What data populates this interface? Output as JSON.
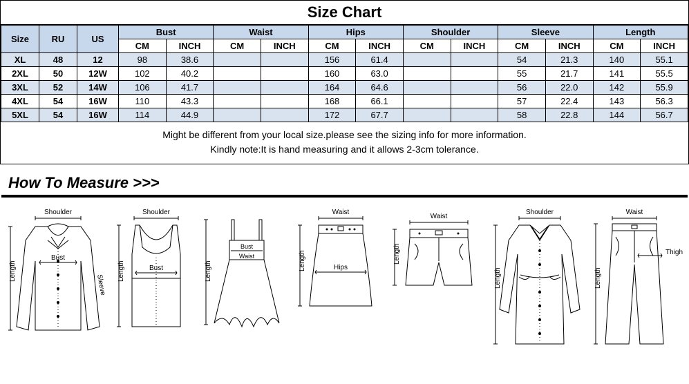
{
  "title": "Size Chart",
  "columns": {
    "size": "Size",
    "ru": "RU",
    "us": "US",
    "bust": "Bust",
    "waist": "Waist",
    "hips": "Hips",
    "shoulder": "Shoulder",
    "sleeve": "Sleeve",
    "length": "Length",
    "cm": "CM",
    "inch": "INCH"
  },
  "header_bg": "#c7d8ed",
  "rows": [
    {
      "size": "XL",
      "ru": "48",
      "us": "12",
      "bust_cm": "98",
      "bust_in": "38.6",
      "waist_cm": "",
      "waist_in": "",
      "hips_cm": "156",
      "hips_in": "61.4",
      "shoulder_cm": "",
      "shoulder_in": "",
      "sleeve_cm": "54",
      "sleeve_in": "21.3",
      "length_cm": "140",
      "length_in": "55.1"
    },
    {
      "size": "2XL",
      "ru": "50",
      "us": "12W",
      "bust_cm": "102",
      "bust_in": "40.2",
      "waist_cm": "",
      "waist_in": "",
      "hips_cm": "160",
      "hips_in": "63.0",
      "shoulder_cm": "",
      "shoulder_in": "",
      "sleeve_cm": "55",
      "sleeve_in": "21.7",
      "length_cm": "141",
      "length_in": "55.5"
    },
    {
      "size": "3XL",
      "ru": "52",
      "us": "14W",
      "bust_cm": "106",
      "bust_in": "41.7",
      "waist_cm": "",
      "waist_in": "",
      "hips_cm": "164",
      "hips_in": "64.6",
      "shoulder_cm": "",
      "shoulder_in": "",
      "sleeve_cm": "56",
      "sleeve_in": "22.0",
      "length_cm": "142",
      "length_in": "55.9"
    },
    {
      "size": "4XL",
      "ru": "54",
      "us": "16W",
      "bust_cm": "110",
      "bust_in": "43.3",
      "waist_cm": "",
      "waist_in": "",
      "hips_cm": "168",
      "hips_in": "66.1",
      "shoulder_cm": "",
      "shoulder_in": "",
      "sleeve_cm": "57",
      "sleeve_in": "22.4",
      "length_cm": "143",
      "length_in": "56.3"
    },
    {
      "size": "5XL",
      "ru": "54",
      "us": "16W",
      "bust_cm": "114",
      "bust_in": "44.9",
      "waist_cm": "",
      "waist_in": "",
      "hips_cm": "172",
      "hips_in": "67.7",
      "shoulder_cm": "",
      "shoulder_in": "",
      "sleeve_cm": "58",
      "sleeve_in": "22.8",
      "length_cm": "144",
      "length_in": "56.7"
    }
  ],
  "row_bg_even": "#d9e3f0",
  "row_bg_odd": "#ffffff",
  "note_line1": "Might be different from your local size.please see the sizing info for more information.",
  "note_line2": "Kindly note:It is hand measuring and it allows 2-3cm tolerance.",
  "how_title": "How To Measure >>>",
  "garment_labels": {
    "shoulder": "Shoulder",
    "bust": "Bust",
    "waist": "Waist",
    "sleeve": "Sleeve",
    "length": "Length",
    "hips": "Hips",
    "thigh": "Thigh"
  }
}
